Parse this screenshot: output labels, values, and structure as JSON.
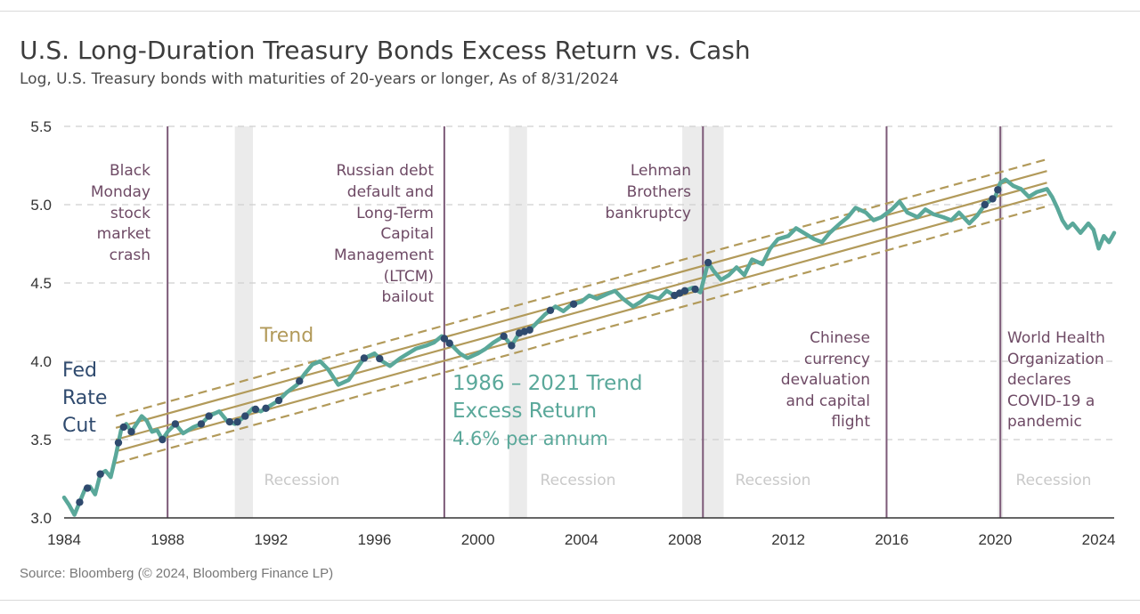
{
  "header": {
    "title": "U.S. Long-Duration Treasury Bonds Excess Return vs. Cash",
    "subtitle": "Log, U.S. Treasury bonds with maturities of 20-years or longer, As of 8/31/2024"
  },
  "footer": {
    "source": "Source: Bloomberg (© 2024, Bloomberg Finance LP)"
  },
  "colors": {
    "line": "#5aa89a",
    "fed_cut": "#2f4a6e",
    "trend": "#b29a5a",
    "event_line": "#7d5a78",
    "recession": "#ebebeb",
    "grid": "#cfcfcf"
  },
  "chart_data": {
    "type": "line",
    "title": "U.S. Long-Duration Treasury Bonds Excess Return vs. Cash",
    "subtitle": "Log, U.S. Treasury bonds with maturities of 20-years or longer, As of 8/31/2024",
    "xlim": [
      1984,
      2024.6
    ],
    "ylim": [
      3.0,
      5.5
    ],
    "x_ticks": [
      "1984",
      "1988",
      "1992",
      "1996",
      "2000",
      "2004",
      "2008",
      "2012",
      "2016",
      "2020",
      "2024"
    ],
    "y_ticks": [
      "3.0",
      "3.5",
      "4.0",
      "4.5",
      "5.0",
      "5.5"
    ],
    "grid": "horizontal dashed",
    "series": [
      {
        "x": [
          1984.0,
          1984.2,
          1984.4,
          1984.6,
          1984.8,
          1985.0,
          1985.2,
          1985.4,
          1985.6,
          1985.8,
          1986.0,
          1986.2,
          1986.4,
          1986.6,
          1986.8,
          1987.0,
          1987.2,
          1987.4,
          1987.6,
          1987.8,
          1988.0,
          1988.3,
          1988.6,
          1989.0,
          1989.3,
          1989.6,
          1990.0,
          1990.3,
          1990.6,
          1991.0,
          1991.3,
          1991.6,
          1992.0,
          1992.3,
          1992.6,
          1993.0,
          1993.3,
          1993.6,
          1993.9,
          1994.2,
          1994.6,
          1995.0,
          1995.3,
          1995.6,
          1996.0,
          1996.3,
          1996.6,
          1997.0,
          1997.3,
          1997.6,
          1998.0,
          1998.3,
          1998.6,
          1998.8,
          1999.0,
          1999.3,
          1999.6,
          2000.0,
          2000.3,
          2000.6,
          2001.0,
          2001.3,
          2001.6,
          2002.0,
          2002.3,
          2002.6,
          2003.0,
          2003.3,
          2003.6,
          2004.0,
          2004.3,
          2004.6,
          2005.0,
          2005.3,
          2005.6,
          2006.0,
          2006.3,
          2006.6,
          2007.0,
          2007.3,
          2007.6,
          2008.0,
          2008.3,
          2008.6,
          2008.9,
          2009.1,
          2009.4,
          2009.7,
          2010.0,
          2010.3,
          2010.6,
          2011.0,
          2011.3,
          2011.6,
          2012.0,
          2012.3,
          2012.6,
          2013.0,
          2013.3,
          2013.6,
          2014.0,
          2014.3,
          2014.6,
          2015.0,
          2015.3,
          2015.6,
          2016.0,
          2016.3,
          2016.6,
          2017.0,
          2017.3,
          2017.6,
          2018.0,
          2018.3,
          2018.6,
          2019.0,
          2019.3,
          2019.6,
          2020.0,
          2020.2,
          2020.4,
          2020.7,
          2021.0,
          2021.3,
          2021.6,
          2022.0,
          2022.2,
          2022.4,
          2022.6,
          2022.8,
          2023.0,
          2023.3,
          2023.6,
          2023.8,
          2024.0,
          2024.2,
          2024.4,
          2024.6
        ],
        "values": [
          3.13,
          3.08,
          3.02,
          3.1,
          3.18,
          3.2,
          3.15,
          3.28,
          3.3,
          3.26,
          3.4,
          3.56,
          3.6,
          3.55,
          3.6,
          3.65,
          3.62,
          3.55,
          3.56,
          3.5,
          3.55,
          3.6,
          3.54,
          3.58,
          3.6,
          3.65,
          3.68,
          3.62,
          3.6,
          3.65,
          3.7,
          3.68,
          3.72,
          3.75,
          3.8,
          3.85,
          3.92,
          3.98,
          4.0,
          3.95,
          3.85,
          3.88,
          3.95,
          4.02,
          4.05,
          4.0,
          3.97,
          4.02,
          4.05,
          4.08,
          4.1,
          4.12,
          4.16,
          4.13,
          4.1,
          4.05,
          4.02,
          4.05,
          4.08,
          4.12,
          4.16,
          4.1,
          4.18,
          4.2,
          4.25,
          4.3,
          4.35,
          4.32,
          4.36,
          4.38,
          4.42,
          4.4,
          4.43,
          4.45,
          4.4,
          4.35,
          4.38,
          4.42,
          4.4,
          4.45,
          4.42,
          4.45,
          4.47,
          4.44,
          4.63,
          4.58,
          4.52,
          4.55,
          4.6,
          4.55,
          4.65,
          4.62,
          4.72,
          4.78,
          4.8,
          4.85,
          4.82,
          4.78,
          4.76,
          4.82,
          4.88,
          4.92,
          4.98,
          4.95,
          4.9,
          4.92,
          4.97,
          5.02,
          4.95,
          4.92,
          4.97,
          4.94,
          4.92,
          4.9,
          4.95,
          4.88,
          4.93,
          5.0,
          5.05,
          5.14,
          5.16,
          5.12,
          5.1,
          5.05,
          5.08,
          5.1,
          5.05,
          4.98,
          4.9,
          4.85,
          4.88,
          4.82,
          4.88,
          4.84,
          4.72,
          4.8,
          4.76,
          4.82
        ]
      }
    ],
    "fed_rate_cut_x": [
      1984.6,
      1984.9,
      1985.4,
      1986.1,
      1986.3,
      1986.6,
      1987.8,
      1988.3,
      1989.3,
      1989.6,
      1990.4,
      1990.7,
      1991.0,
      1991.4,
      1991.8,
      1992.3,
      1993.1,
      1995.6,
      1996.2,
      1998.7,
      1998.9,
      2001.0,
      2001.3,
      2001.6,
      2001.8,
      2002.0,
      2002.8,
      2003.7,
      2007.6,
      2007.8,
      2008.0,
      2008.4,
      2008.9,
      2019.6,
      2019.9,
      2020.1
    ],
    "trend": {
      "x_start": 1986.0,
      "x_end": 2022.0,
      "y_start": 3.5,
      "y_end": 5.14,
      "solid_offsets": [
        -0.075,
        0,
        0.075
      ],
      "dashed_offsets": [
        -0.15,
        0.15
      ]
    },
    "event_lines_x": [
      1988.0,
      1998.7,
      2008.7,
      2015.8,
      2020.2
    ],
    "recessions": [
      [
        1990.6,
        1991.3
      ],
      [
        2001.2,
        2001.9
      ],
      [
        2007.9,
        2009.5
      ],
      [
        2020.1,
        2020.3
      ]
    ],
    "annotations": {
      "black_monday": [
        "Black",
        "Monday",
        "stock",
        "market",
        "crash"
      ],
      "russia": [
        "Russian debt",
        "default and",
        "Long-Term",
        "Capital",
        "Management",
        "(LTCM)",
        "bailout"
      ],
      "lehman": [
        "Lehman",
        "Brothers",
        "bankruptcy"
      ],
      "china": [
        "Chinese",
        "currency",
        "devaluation",
        "and capital",
        "flight"
      ],
      "who": [
        "World Health",
        "Organization",
        "declares",
        "COVID-19 a",
        "pandemic"
      ],
      "fed": [
        "Fed",
        "Rate",
        "Cut"
      ],
      "trend_label": "Trend",
      "trend_return": [
        "1986 – 2021 Trend",
        "Excess Return"
      ],
      "trend_rate": "4.6% per annum",
      "recession_label": "Recession"
    }
  }
}
